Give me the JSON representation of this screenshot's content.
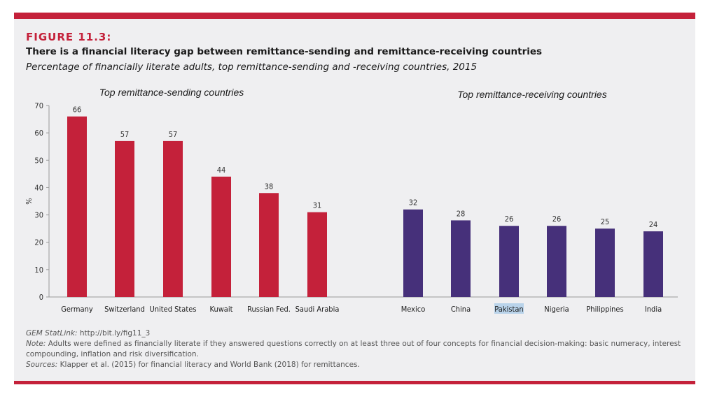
{
  "figure_label": "FIGURE 11.3:",
  "title": "There is a financial literacy gap between remittance-sending and remittance-receiving countries",
  "subtitle": "Percentage of financially literate adults, top remittance-sending and -receiving countries, 2015",
  "notes": {
    "statlink_label": "GEM StatLink:",
    "statlink_url": "http://bit.ly/fig11_3",
    "note_label": "Note:",
    "note_text": "Adults were defined as financially literate if they answered questions correctly on at least three out of four concepts for financial decision-making: basic numeracy, interest compounding, inflation and risk diversification.",
    "sources_label": "Sources:",
    "sources_text": "Klapper et al. (2015) for financial literacy and World Bank (2018) for remittances."
  },
  "chart_data": {
    "type": "bar",
    "ylabel": "%",
    "ylim": [
      0,
      70
    ],
    "yticks": [
      0,
      10,
      20,
      30,
      40,
      50,
      60,
      70
    ],
    "grid": false,
    "groups": [
      {
        "name": "Top remittance-sending countries",
        "color": "#c4213a",
        "categories": [
          "Germany",
          "Switzerland",
          "United States",
          "Kuwait",
          "Russian Fed.",
          "Saudi Arabia"
        ],
        "values": [
          66,
          57,
          57,
          44,
          38,
          31
        ]
      },
      {
        "name": "Top remittance-receiving countries",
        "color": "#46307a",
        "categories": [
          "Mexico",
          "China",
          "Pakistan",
          "Nigeria",
          "Philippines",
          "India"
        ],
        "values": [
          32,
          28,
          26,
          26,
          25,
          24
        ]
      }
    ]
  }
}
